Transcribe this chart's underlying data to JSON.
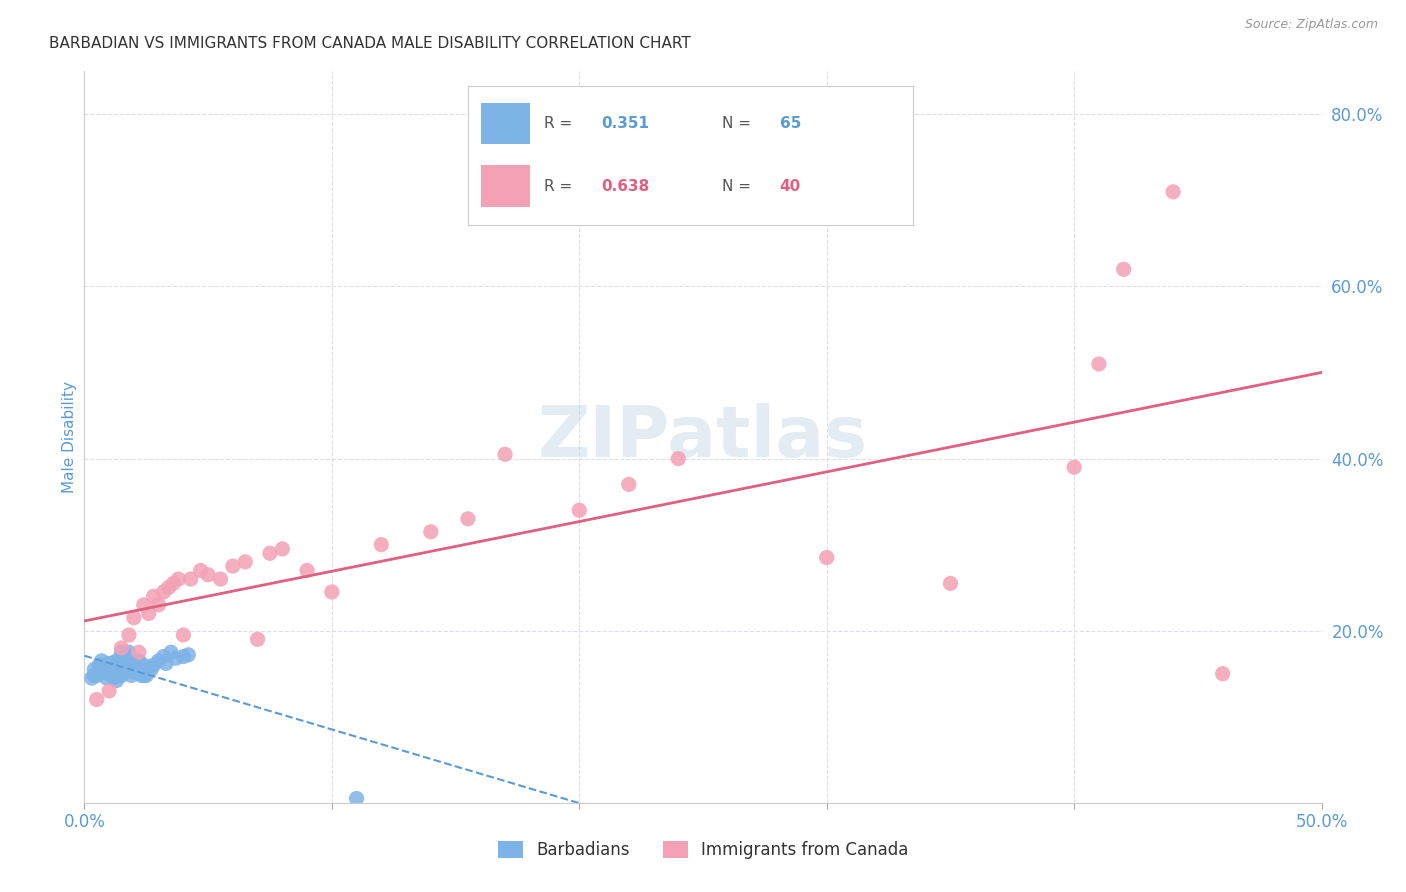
{
  "title": "BARBADIAN VS IMMIGRANTS FROM CANADA MALE DISABILITY CORRELATION CHART",
  "source": "Source: ZipAtlas.com",
  "ylabel": "Male Disability",
  "xlim": [
    0.0,
    0.5
  ],
  "ylim": [
    0.0,
    0.85
  ],
  "y_ticks_right": [
    0.2,
    0.4,
    0.6,
    0.8
  ],
  "y_tick_labels_right": [
    "20.0%",
    "40.0%",
    "60.0%",
    "80.0%"
  ],
  "barbadian_R": 0.351,
  "barbadian_N": 65,
  "canada_R": 0.638,
  "canada_N": 40,
  "barbadian_color": "#7EB3E8",
  "canada_color": "#F4A0B5",
  "barbadian_line_color": "#5B9BD5",
  "canada_line_color": "#E06080",
  "watermark": "ZIPatlas",
  "watermark_color": "#C8D8E8",
  "background_color": "#FFFFFF",
  "grid_color": "#DDDDEE",
  "axis_label_color": "#5B9BD5",
  "barbadian_x": [
    0.004,
    0.006,
    0.007,
    0.008,
    0.009,
    0.01,
    0.011,
    0.012,
    0.013,
    0.014,
    0.015,
    0.016,
    0.017,
    0.018,
    0.019,
    0.02,
    0.021,
    0.022,
    0.023,
    0.024,
    0.025,
    0.027,
    0.028,
    0.03,
    0.032,
    0.033,
    0.035,
    0.037,
    0.04,
    0.042,
    0.005,
    0.008,
    0.01,
    0.012,
    0.014,
    0.016,
    0.018,
    0.02,
    0.022,
    0.024,
    0.006,
    0.009,
    0.011,
    0.013,
    0.015,
    0.017,
    0.019,
    0.021,
    0.023,
    0.025,
    0.003,
    0.004,
    0.005,
    0.006,
    0.007,
    0.008,
    0.009,
    0.01,
    0.011,
    0.012,
    0.013,
    0.015,
    0.017,
    0.019,
    0.11
  ],
  "barbadian_y": [
    0.155,
    0.16,
    0.165,
    0.155,
    0.145,
    0.15,
    0.158,
    0.162,
    0.148,
    0.152,
    0.175,
    0.168,
    0.155,
    0.16,
    0.148,
    0.152,
    0.158,
    0.165,
    0.155,
    0.16,
    0.148,
    0.155,
    0.16,
    0.165,
    0.17,
    0.162,
    0.175,
    0.168,
    0.17,
    0.172,
    0.148,
    0.155,
    0.158,
    0.162,
    0.165,
    0.17,
    0.175,
    0.16,
    0.155,
    0.148,
    0.152,
    0.158,
    0.162,
    0.165,
    0.168,
    0.172,
    0.155,
    0.16,
    0.148,
    0.152,
    0.145,
    0.148,
    0.15,
    0.152,
    0.155,
    0.158,
    0.16,
    0.162,
    0.148,
    0.145,
    0.142,
    0.148,
    0.152,
    0.155,
    0.005
  ],
  "canada_x": [
    0.005,
    0.01,
    0.015,
    0.018,
    0.02,
    0.022,
    0.024,
    0.026,
    0.028,
    0.03,
    0.032,
    0.034,
    0.036,
    0.038,
    0.04,
    0.043,
    0.047,
    0.05,
    0.055,
    0.06,
    0.065,
    0.07,
    0.075,
    0.08,
    0.09,
    0.1,
    0.12,
    0.14,
    0.155,
    0.17,
    0.2,
    0.22,
    0.24,
    0.3,
    0.35,
    0.4,
    0.41,
    0.42,
    0.44,
    0.46
  ],
  "canada_y": [
    0.12,
    0.13,
    0.18,
    0.195,
    0.215,
    0.175,
    0.23,
    0.22,
    0.24,
    0.23,
    0.245,
    0.25,
    0.255,
    0.26,
    0.195,
    0.26,
    0.27,
    0.265,
    0.26,
    0.275,
    0.28,
    0.19,
    0.29,
    0.295,
    0.27,
    0.245,
    0.3,
    0.315,
    0.33,
    0.405,
    0.34,
    0.37,
    0.4,
    0.285,
    0.255,
    0.39,
    0.51,
    0.62,
    0.71,
    0.15
  ]
}
